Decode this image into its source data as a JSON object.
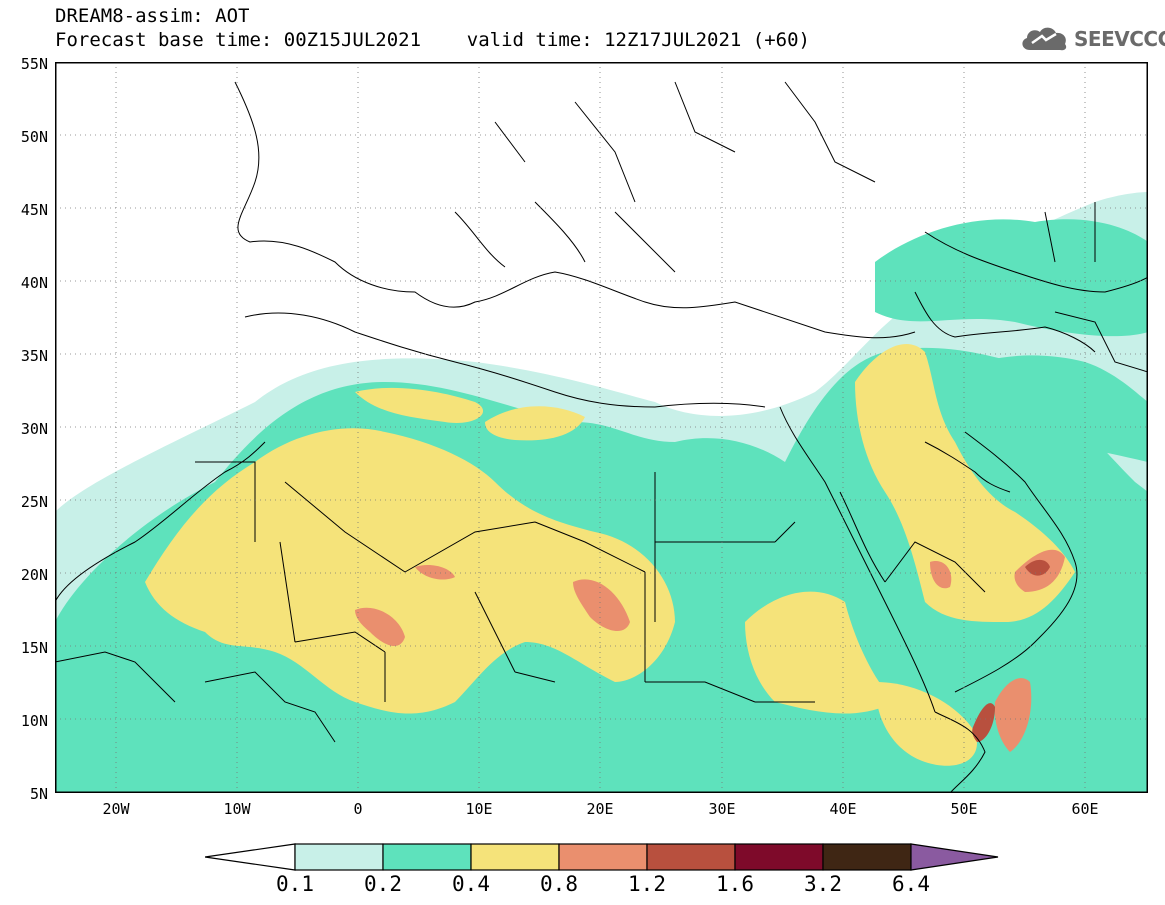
{
  "header": {
    "title_line1": "DREAM8-assim: AOT",
    "title_line2": "Forecast base time: 00Z15JUL2021    valid time: 12Z17JUL2021 (+60)",
    "logo_text": "SEEVCCC"
  },
  "map": {
    "lat_labels": [
      "55N",
      "50N",
      "45N",
      "40N",
      "35N",
      "30N",
      "25N",
      "20N",
      "15N",
      "10N",
      "5N"
    ],
    "lon_labels": [
      "20W",
      "10W",
      "0",
      "10E",
      "20E",
      "30E",
      "40E",
      "50E",
      "60E"
    ]
  },
  "legend": {
    "colors": [
      "#c8f0e8",
      "#5ee2bc",
      "#f5e37a",
      "#ea8f6e",
      "#b8503e",
      "#7e0a2a",
      "#3f2614",
      "#8a5aa0"
    ],
    "labels": [
      "0.1",
      "0.2",
      "0.4",
      "0.8",
      "1.2",
      "1.6",
      "3.2",
      "6.4"
    ]
  }
}
